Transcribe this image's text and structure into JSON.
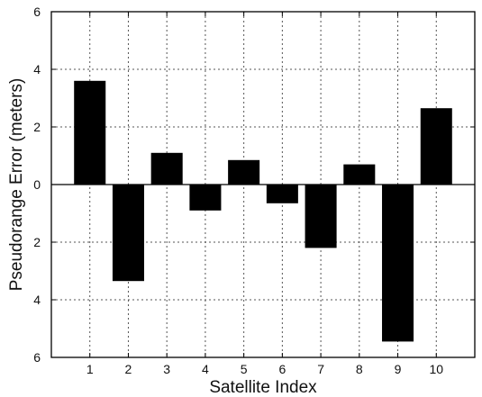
{
  "chart_data": {
    "type": "bar",
    "xlabel": "Satellite Index",
    "ylabel": "Pseudorange Error (meters)",
    "categories": [
      "1",
      "2",
      "3",
      "4",
      "5",
      "6",
      "7",
      "8",
      "9",
      "10"
    ],
    "values": [
      3.6,
      -3.35,
      1.1,
      -0.9,
      0.85,
      -0.65,
      -2.2,
      0.7,
      -5.45,
      2.65
    ],
    "x_range": [
      0,
      11
    ],
    "ylim": [
      -6,
      6
    ],
    "y_ticks": [
      6,
      4,
      2,
      0,
      -2,
      -4,
      -6
    ],
    "y_tick_labels": [
      "6",
      "4",
      "2",
      "0",
      "2",
      "4",
      "6"
    ],
    "grid": true,
    "bar_color": "#000000"
  }
}
